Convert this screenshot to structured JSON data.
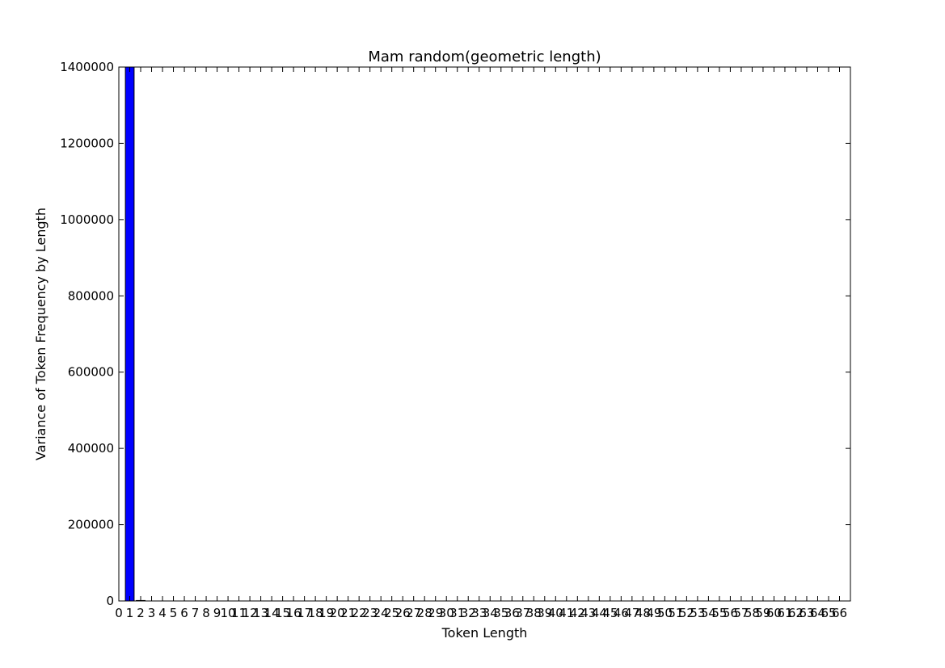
{
  "chart_data": {
    "type": "bar",
    "title": "Mam random(geometric length)",
    "xlabel": "Token Length",
    "ylabel": "Variance of Token Frequency by Length",
    "xlim": [
      0,
      67
    ],
    "ylim": [
      0,
      1400000
    ],
    "yticks": [
      0,
      200000,
      400000,
      600000,
      800000,
      1000000,
      1200000,
      1400000
    ],
    "xticks": [
      "0",
      "1",
      "2",
      "3",
      "4",
      "5",
      "6",
      "7",
      "8",
      "9",
      "10",
      "11",
      "12",
      "13",
      "14",
      "15",
      "16",
      "17",
      "18",
      "19",
      "20",
      "21",
      "22",
      "23",
      "24",
      "25",
      "26",
      "27",
      "28",
      "29",
      "30",
      "31",
      "32",
      "33",
      "34",
      "35",
      "36",
      "37",
      "38",
      "39",
      "40",
      "41",
      "42",
      "43",
      "44",
      "45",
      "46",
      "47",
      "48",
      "49",
      "50",
      "51",
      "52",
      "53",
      "54",
      "55",
      "56",
      "57",
      "58",
      "59",
      "60",
      "61",
      "62",
      "63",
      "64",
      "65",
      "66"
    ],
    "bars": [
      {
        "x": 1,
        "value": 1400000
      },
      {
        "x": 2,
        "value": 1200
      }
    ],
    "bar_color": "#0000ff",
    "grid": false,
    "legend": "none"
  }
}
